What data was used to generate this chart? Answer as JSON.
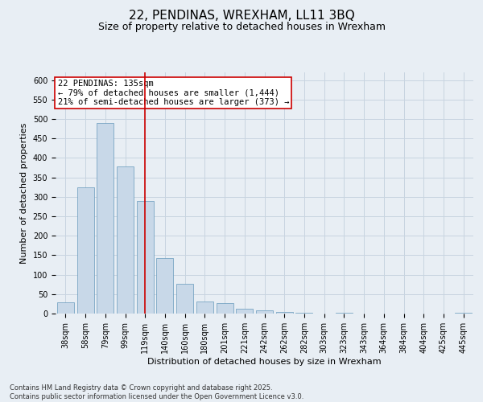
{
  "title": "22, PENDINAS, WREXHAM, LL11 3BQ",
  "subtitle": "Size of property relative to detached houses in Wrexham",
  "xlabel": "Distribution of detached houses by size in Wrexham",
  "ylabel": "Number of detached properties",
  "categories": [
    "38sqm",
    "58sqm",
    "79sqm",
    "99sqm",
    "119sqm",
    "140sqm",
    "160sqm",
    "180sqm",
    "201sqm",
    "221sqm",
    "242sqm",
    "262sqm",
    "282sqm",
    "303sqm",
    "323sqm",
    "343sqm",
    "364sqm",
    "384sqm",
    "404sqm",
    "425sqm",
    "445sqm"
  ],
  "values": [
    28,
    325,
    490,
    378,
    290,
    143,
    76,
    30,
    27,
    13,
    8,
    5,
    2,
    1,
    3,
    1,
    0,
    0,
    0,
    0,
    3
  ],
  "bar_color": "#c8d8e8",
  "bar_edge_color": "#6699bb",
  "vline_x_index": 4,
  "vline_color": "#cc0000",
  "annotation_text": "22 PENDINAS: 135sqm\n← 79% of detached houses are smaller (1,444)\n21% of semi-detached houses are larger (373) →",
  "annotation_box_color": "#ffffff",
  "annotation_box_edge_color": "#cc0000",
  "grid_color": "#c8d4e0",
  "background_color": "#e8eef4",
  "plot_bg_color": "#e8eef4",
  "ylim": [
    0,
    620
  ],
  "yticks": [
    0,
    50,
    100,
    150,
    200,
    250,
    300,
    350,
    400,
    450,
    500,
    550,
    600
  ],
  "footer_text": "Contains HM Land Registry data © Crown copyright and database right 2025.\nContains public sector information licensed under the Open Government Licence v3.0.",
  "title_fontsize": 11,
  "subtitle_fontsize": 9,
  "axis_label_fontsize": 8,
  "tick_fontsize": 7,
  "annotation_fontsize": 7.5,
  "footer_fontsize": 6
}
